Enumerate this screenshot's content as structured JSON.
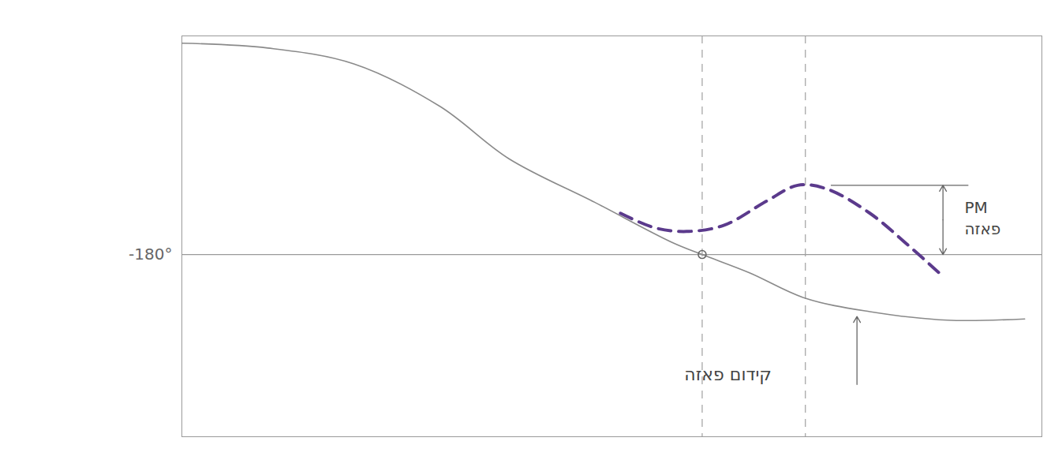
{
  "chart_data": {
    "type": "line",
    "tick_labels": "y",
    "grid": true,
    "xlim": [
      0,
      100
    ],
    "ylim": [
      -330,
      0
    ],
    "yticks": [
      {
        "value": -180,
        "label": "-180°"
      }
    ],
    "series": [
      {
        "color": "#8a8a8a",
        "line_style": "solid",
        "x": [
          0,
          10,
          20,
          30,
          38,
          48,
          57,
          60.5,
          66,
          72.5,
          80,
          89,
          98
        ],
        "values": [
          -6,
          -10,
          -23,
          -58,
          -101,
          -137,
          -170,
          -180,
          -195,
          -216,
          -227,
          -234,
          -233
        ]
      },
      {
        "color": "#5b3a8c",
        "line_style": "dashed",
        "x": [
          51,
          55,
          58.7,
          63,
          68,
          71.6,
          75,
          80,
          84.4,
          88.5
        ],
        "values": [
          -146,
          -158,
          -161,
          -156,
          -136,
          -123,
          -126,
          -146,
          -172,
          -198
        ]
      }
    ],
    "x_markers": [
      60.5,
      72.5
    ],
    "annotations": [
      "PM",
      "פאזה",
      "קידום פאזה"
    ]
  }
}
